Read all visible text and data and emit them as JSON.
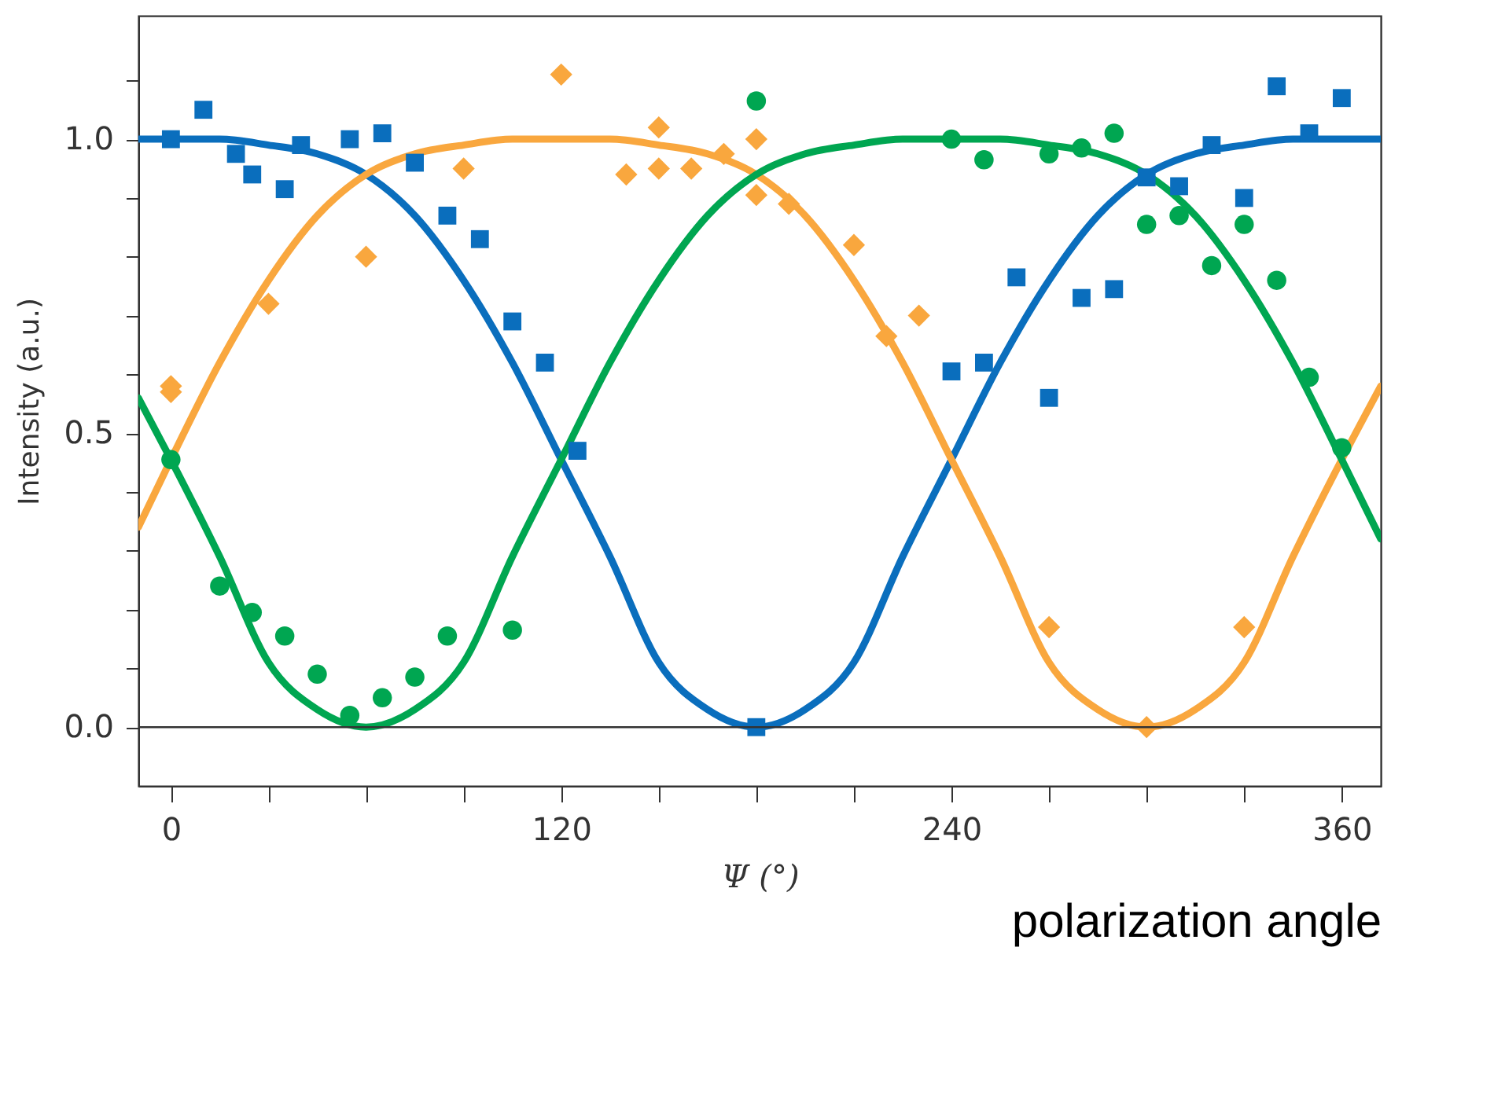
{
  "chart_data": {
    "type": "scatter",
    "xlabel": "Ψ (°)",
    "ylabel": "Intensity (a.u.)",
    "annotations": [
      "polarization angle"
    ],
    "xlim": [
      -10,
      372
    ],
    "ylim": [
      -0.1,
      1.21
    ],
    "xticks": [
      0,
      {
        "value": 30,
        "label": null
      },
      {
        "value": 60,
        "label": null
      },
      {
        "value": 90,
        "label": null
      },
      120,
      {
        "value": 150,
        "label": null
      },
      {
        "value": 180,
        "label": null
      },
      {
        "value": 210,
        "label": null
      },
      240,
      {
        "value": 270,
        "label": null
      },
      {
        "value": 300,
        "label": null
      },
      {
        "value": 330,
        "label": null
      },
      360
    ],
    "yticks": [
      {
        "value": 0,
        "label": "0.0"
      },
      {
        "value": 0.1,
        "label": null
      },
      {
        "value": 0.2,
        "label": null
      },
      {
        "value": 0.3,
        "label": null
      },
      {
        "value": 0.4,
        "label": null
      },
      {
        "value": 0.5,
        "label": "0.5"
      },
      {
        "value": 0.6,
        "label": null
      },
      {
        "value": 0.7,
        "label": null
      },
      {
        "value": 0.8,
        "label": null
      },
      {
        "value": 0.9,
        "label": null
      },
      {
        "value": 1.0,
        "label": "1.0"
      },
      {
        "value": 1.1,
        "label": null
      }
    ],
    "grid": false,
    "ref_lines": [
      {
        "axis": "y",
        "value": 0,
        "color": "#333333"
      }
    ],
    "series": [
      {
        "type": "line",
        "color": "#0a6ebd",
        "marker": "none",
        "x": [
          -10,
          0,
          15,
          30,
          45,
          60,
          75,
          90,
          105,
          120,
          135,
          150,
          165,
          180,
          195,
          210,
          225,
          240,
          255,
          270,
          285,
          300,
          315,
          330,
          345,
          360,
          372
        ],
        "values": [
          1.0,
          1.0,
          1.0,
          0.99,
          0.975,
          0.94,
          0.87,
          0.76,
          0.62,
          0.455,
          0.29,
          0.11,
          0.03,
          0.0,
          0.03,
          0.11,
          0.29,
          0.455,
          0.62,
          0.76,
          0.87,
          0.94,
          0.975,
          0.99,
          1.0,
          1.0,
          1.0
        ]
      },
      {
        "type": "line",
        "color": "#f9a73e",
        "marker": "none",
        "x": [
          -10,
          0,
          15,
          30,
          45,
          60,
          75,
          90,
          105,
          120,
          135,
          150,
          165,
          180,
          195,
          210,
          225,
          240,
          255,
          270,
          285,
          300,
          315,
          330,
          345,
          360,
          372
        ],
        "values": [
          0.34,
          0.455,
          0.62,
          0.76,
          0.87,
          0.94,
          0.975,
          0.99,
          1.0,
          1.0,
          1.0,
          0.99,
          0.975,
          0.94,
          0.87,
          0.76,
          0.62,
          0.455,
          0.29,
          0.11,
          0.03,
          0.0,
          0.03,
          0.11,
          0.29,
          0.455,
          0.58
        ]
      },
      {
        "type": "line",
        "color": "#00a651",
        "marker": "none",
        "x": [
          -10,
          0,
          15,
          30,
          45,
          60,
          75,
          90,
          105,
          120,
          135,
          150,
          165,
          180,
          195,
          210,
          225,
          240,
          255,
          270,
          285,
          300,
          315,
          330,
          345,
          360,
          372
        ],
        "values": [
          0.56,
          0.455,
          0.29,
          0.11,
          0.03,
          0.0,
          0.03,
          0.11,
          0.29,
          0.455,
          0.62,
          0.76,
          0.87,
          0.94,
          0.975,
          0.99,
          1.0,
          1.0,
          1.0,
          0.99,
          0.975,
          0.94,
          0.87,
          0.76,
          0.62,
          0.455,
          0.32
        ]
      },
      {
        "color": "#0a6ebd",
        "marker": "square",
        "x": [
          0,
          10,
          20,
          25,
          35,
          40,
          55,
          65,
          75,
          85,
          95,
          105,
          115,
          125,
          180
        ],
        "values": [
          1.0,
          1.05,
          0.975,
          0.94,
          0.915,
          0.99,
          1.0,
          1.01,
          0.96,
          0.87,
          0.83,
          0.69,
          0.62,
          0.47,
          0.0
        ]
      },
      {
        "color": "#0a6ebd",
        "marker": "square",
        "x": [
          240,
          250,
          260,
          270,
          280,
          290,
          300,
          310,
          320,
          330,
          340,
          350,
          360
        ],
        "values": [
          0.605,
          0.62,
          0.765,
          0.56,
          0.73,
          0.745,
          0.935,
          0.92,
          0.99,
          0.9,
          1.09,
          1.01,
          1.07
        ]
      },
      {
        "color": "#f9a73e",
        "marker": "diamond",
        "x": [
          0,
          140,
          150,
          160,
          170,
          180,
          180,
          190,
          210,
          220,
          230
        ],
        "values": [
          0.58,
          0.94,
          1.02,
          0.95,
          0.975,
          1.0,
          0.905,
          0.89,
          0.82,
          0.665,
          0.7
        ]
      },
      {
        "color": "#f9a73e",
        "marker": "diamond",
        "x": [
          0,
          30,
          60,
          90,
          120,
          150,
          270,
          300,
          330
        ],
        "values": [
          0.57,
          0.72,
          0.8,
          0.95,
          1.11,
          0.95,
          0.17,
          0.0,
          0.17
        ]
      },
      {
        "color": "#00a651",
        "marker": "circle",
        "x": [
          0,
          15,
          25,
          35,
          45,
          55,
          65,
          75,
          85,
          105,
          180,
          240,
          250,
          270,
          280,
          290,
          300,
          310,
          320,
          330,
          340,
          350,
          360
        ],
        "values": [
          0.455,
          0.24,
          0.195,
          0.155,
          0.09,
          0.02,
          0.05,
          0.085,
          0.155,
          0.165,
          1.065,
          1.0,
          0.965,
          0.975,
          0.985,
          1.01,
          0.855,
          0.87,
          0.785,
          0.855,
          0.76,
          0.595,
          0.475
        ]
      }
    ]
  }
}
